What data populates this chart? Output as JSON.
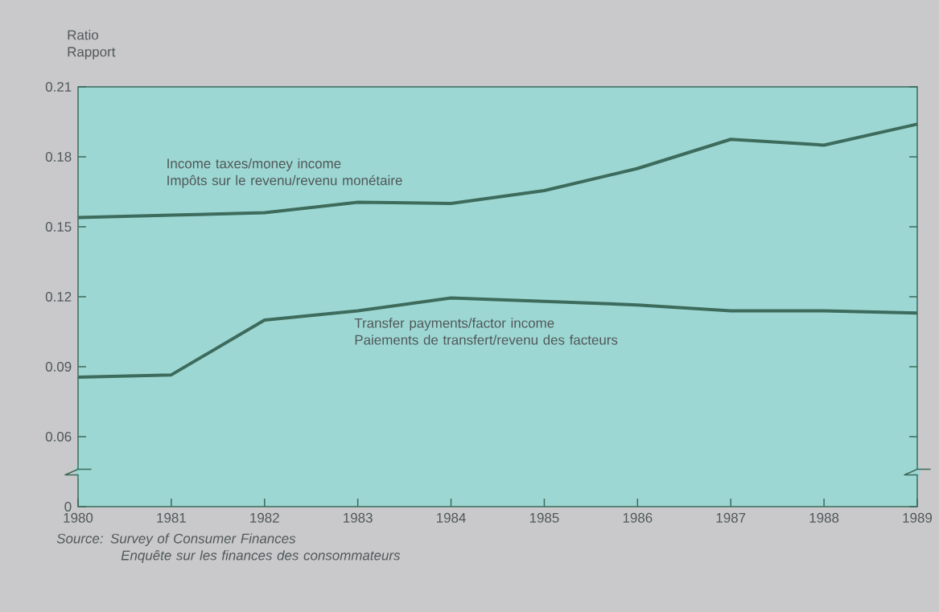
{
  "chart_data": {
    "type": "line",
    "ylabel": "Ratio Rapport",
    "x": [
      1980,
      1981,
      1982,
      1983,
      1984,
      1985,
      1986,
      1987,
      1988,
      1989
    ],
    "series": [
      {
        "name": "Income taxes/money income Impôts sur le revenu/revenu monétaire",
        "color": "#3d6b5c",
        "values": [
          0.154,
          0.155,
          0.156,
          0.1605,
          0.16,
          0.1655,
          0.175,
          0.1875,
          0.185,
          0.194
        ]
      },
      {
        "name": "Transfer payments/factor income Paiements de transfert/revenu des facteurs",
        "color": "#3d6b5c",
        "values": [
          0.0855,
          0.0865,
          0.11,
          0.114,
          0.1195,
          0.118,
          0.1165,
          0.114,
          0.114,
          0.113
        ]
      }
    ],
    "xlim": [
      1980,
      1989
    ],
    "xticks": [
      1980,
      1981,
      1982,
      1983,
      1984,
      1985,
      1986,
      1987,
      1988,
      1989
    ],
    "ylim": [
      0.03,
      0.21
    ],
    "yticks": [
      {
        "value": 0.03,
        "label": "0"
      },
      0.06,
      0.09,
      0.12,
      0.15,
      0.18,
      0.21
    ],
    "annotations": [
      "Source: Survey of Consumer Finances Enquête sur les finances des consommateurs"
    ],
    "legend": false,
    "grid": false,
    "marker": "none",
    "line_style": "solid"
  }
}
